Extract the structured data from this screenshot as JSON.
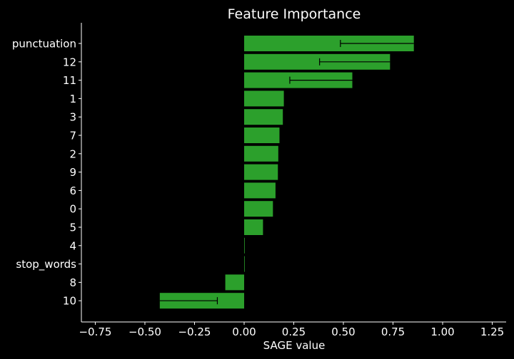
{
  "chart_data": {
    "type": "bar",
    "orientation": "horizontal",
    "title": "Feature Importance",
    "xlabel": "SAGE value",
    "ylabel": "",
    "xlim": [
      -0.82,
      1.32
    ],
    "xticks": [
      -0.75,
      -0.5,
      -0.25,
      0.0,
      0.25,
      0.5,
      0.75,
      1.0,
      1.25
    ],
    "xtick_labels": [
      "−0.75",
      "−0.50",
      "−0.25",
      "0.00",
      "0.25",
      "0.50",
      "0.75",
      "1.00",
      "1.25"
    ],
    "categories": [
      "punctuation",
      "12",
      "11",
      "1",
      "3",
      "7",
      "2",
      "9",
      "6",
      "0",
      "5",
      "4",
      "stop_words",
      "8",
      "10"
    ],
    "values": [
      0.855,
      0.735,
      0.545,
      0.2,
      0.195,
      0.178,
      0.172,
      0.17,
      0.158,
      0.145,
      0.095,
      0.002,
      0.0,
      -0.095,
      -0.425
    ],
    "error_low": [
      0.485,
      0.38,
      0.23,
      null,
      null,
      null,
      null,
      null,
      null,
      null,
      null,
      null,
      null,
      null,
      -0.135
    ],
    "bar_color": "#2ca02c",
    "background": "#000000",
    "axis_color": "#ffffff",
    "grid": false,
    "legend": "none"
  }
}
